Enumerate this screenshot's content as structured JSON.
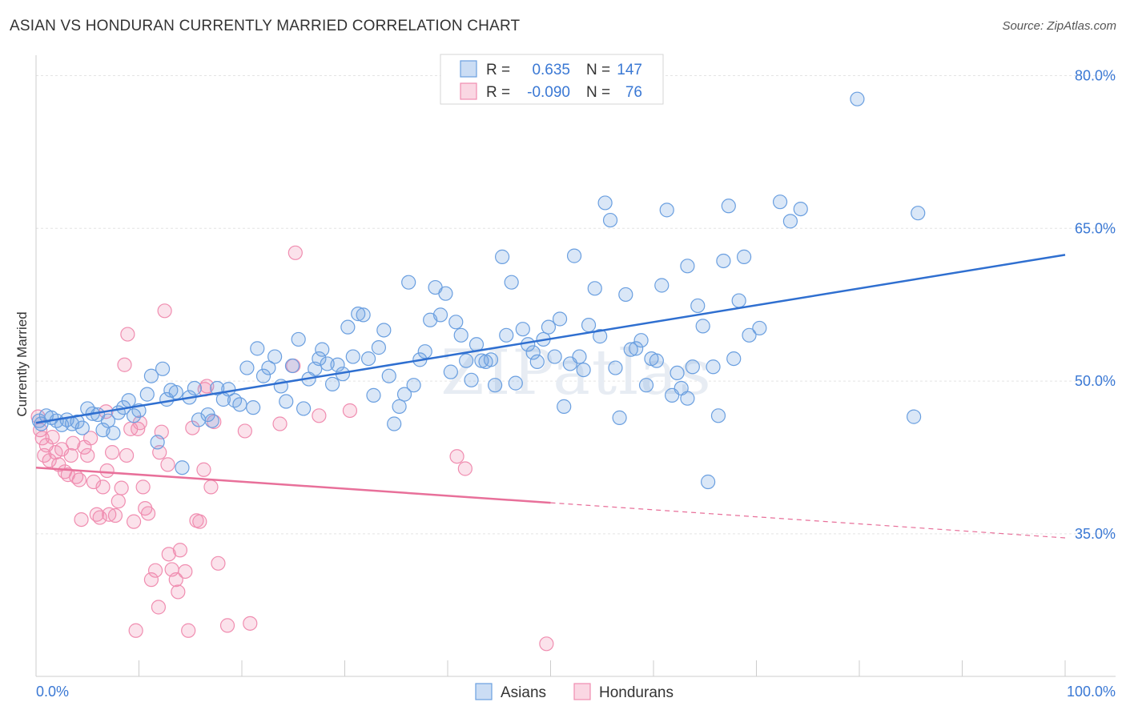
{
  "title": "ASIAN VS HONDURAN CURRENTLY MARRIED CORRELATION CHART",
  "source": "Source: ZipAtlas.com",
  "watermark": "ZIPatlas",
  "legend": {
    "rows": [
      {
        "r_label": "R =",
        "r_value": "0.635",
        "n_label": "N =",
        "n_value": "147",
        "color": "#6a9fe0"
      },
      {
        "r_label": "R =",
        "r_value": "-0.090",
        "n_label": "N =",
        "n_value": "76",
        "color": "#f08db0"
      }
    ]
  },
  "bottom_legend": [
    "Asians",
    "Hondurans"
  ],
  "chart_data": {
    "type": "scatter",
    "title": "ASIAN VS HONDURAN CURRENTLY MARRIED CORRELATION CHART",
    "xlabel": "",
    "ylabel": "Currently Married",
    "xlim": [
      0,
      100
    ],
    "ylim": [
      21,
      82
    ],
    "x_tick_labels": [
      "0.0%",
      "100.0%"
    ],
    "y_ticks": [
      35,
      50,
      65,
      80
    ],
    "y_tick_labels": [
      "35.0%",
      "50.0%",
      "65.0%",
      "80.0%"
    ],
    "grid": true,
    "legend_position": "top-center",
    "series": [
      {
        "name": "Asians",
        "color": "#6a9fe0",
        "fill": "rgba(106,159,224,0.25)",
        "r": 0.635,
        "n": 147,
        "trend": {
          "x0": 0,
          "y0": 45.9,
          "x1": 100,
          "y1": 62.4
        },
        "points": [
          [
            0.3,
            46.1
          ],
          [
            0.5,
            45.8
          ],
          [
            1.0,
            46.6
          ],
          [
            1.5,
            46.4
          ],
          [
            2.0,
            46.1
          ],
          [
            2.5,
            45.7
          ],
          [
            3.0,
            46.2
          ],
          [
            3.5,
            45.8
          ],
          [
            4.0,
            46.0
          ],
          [
            4.5,
            45.4
          ],
          [
            5.0,
            47.3
          ],
          [
            5.5,
            46.8
          ],
          [
            6.0,
            46.7
          ],
          [
            6.5,
            45.2
          ],
          [
            7.0,
            46.1
          ],
          [
            7.5,
            44.9
          ],
          [
            8.0,
            46.9
          ],
          [
            8.5,
            47.4
          ],
          [
            9.0,
            48.1
          ],
          [
            9.5,
            46.6
          ],
          [
            10.0,
            47.1
          ],
          [
            10.8,
            48.7
          ],
          [
            11.2,
            50.5
          ],
          [
            11.8,
            44.0
          ],
          [
            12.3,
            51.2
          ],
          [
            12.7,
            48.2
          ],
          [
            13.1,
            49.1
          ],
          [
            13.6,
            48.9
          ],
          [
            14.2,
            41.5
          ],
          [
            14.9,
            48.4
          ],
          [
            15.4,
            49.3
          ],
          [
            15.8,
            46.2
          ],
          [
            16.7,
            46.7
          ],
          [
            17.1,
            46.1
          ],
          [
            17.6,
            49.3
          ],
          [
            18.2,
            48.2
          ],
          [
            18.7,
            49.2
          ],
          [
            19.3,
            48.1
          ],
          [
            19.8,
            47.7
          ],
          [
            20.5,
            51.3
          ],
          [
            21.1,
            47.4
          ],
          [
            21.5,
            53.2
          ],
          [
            22.1,
            50.5
          ],
          [
            22.6,
            51.3
          ],
          [
            23.2,
            52.4
          ],
          [
            23.8,
            49.5
          ],
          [
            24.3,
            48.0
          ],
          [
            24.9,
            51.5
          ],
          [
            25.5,
            54.1
          ],
          [
            26.0,
            47.3
          ],
          [
            26.5,
            50.2
          ],
          [
            27.1,
            51.2
          ],
          [
            27.5,
            52.2
          ],
          [
            27.8,
            53.1
          ],
          [
            28.3,
            51.7
          ],
          [
            28.8,
            49.7
          ],
          [
            29.3,
            51.6
          ],
          [
            29.8,
            50.7
          ],
          [
            30.3,
            55.3
          ],
          [
            30.8,
            52.4
          ],
          [
            31.3,
            56.6
          ],
          [
            31.8,
            56.5
          ],
          [
            32.3,
            52.2
          ],
          [
            32.8,
            48.6
          ],
          [
            33.3,
            53.3
          ],
          [
            33.8,
            55.0
          ],
          [
            34.3,
            50.5
          ],
          [
            34.8,
            45.8
          ],
          [
            35.3,
            47.5
          ],
          [
            35.8,
            48.7
          ],
          [
            36.2,
            59.7
          ],
          [
            36.7,
            49.6
          ],
          [
            37.3,
            52.1
          ],
          [
            37.8,
            52.9
          ],
          [
            38.3,
            56.0
          ],
          [
            38.8,
            59.2
          ],
          [
            39.3,
            56.5
          ],
          [
            39.8,
            58.6
          ],
          [
            40.3,
            50.9
          ],
          [
            40.8,
            55.8
          ],
          [
            41.3,
            54.5
          ],
          [
            41.8,
            52.0
          ],
          [
            42.3,
            50.1
          ],
          [
            42.8,
            53.6
          ],
          [
            43.3,
            52.0
          ],
          [
            43.7,
            51.9
          ],
          [
            44.2,
            52.1
          ],
          [
            44.6,
            49.6
          ],
          [
            45.3,
            62.2
          ],
          [
            45.7,
            54.5
          ],
          [
            46.2,
            59.7
          ],
          [
            46.6,
            49.8
          ],
          [
            47.3,
            55.1
          ],
          [
            47.8,
            53.6
          ],
          [
            48.3,
            52.8
          ],
          [
            48.7,
            51.9
          ],
          [
            49.3,
            54.1
          ],
          [
            49.8,
            55.3
          ],
          [
            50.4,
            52.4
          ],
          [
            50.9,
            56.1
          ],
          [
            51.3,
            47.5
          ],
          [
            51.9,
            51.7
          ],
          [
            52.3,
            62.3
          ],
          [
            52.8,
            52.4
          ],
          [
            53.2,
            51.1
          ],
          [
            53.7,
            55.5
          ],
          [
            54.3,
            59.1
          ],
          [
            54.8,
            54.4
          ],
          [
            55.3,
            67.5
          ],
          [
            55.8,
            65.8
          ],
          [
            56.3,
            51.3
          ],
          [
            56.7,
            46.4
          ],
          [
            57.3,
            58.5
          ],
          [
            57.8,
            53.1
          ],
          [
            58.3,
            53.2
          ],
          [
            58.8,
            54.0
          ],
          [
            59.3,
            49.6
          ],
          [
            59.8,
            52.2
          ],
          [
            60.3,
            52.0
          ],
          [
            60.8,
            59.4
          ],
          [
            61.3,
            66.8
          ],
          [
            61.8,
            48.6
          ],
          [
            62.3,
            50.8
          ],
          [
            62.7,
            49.3
          ],
          [
            63.3,
            48.3
          ],
          [
            63.8,
            51.4
          ],
          [
            64.3,
            57.4
          ],
          [
            64.8,
            55.4
          ],
          [
            65.3,
            40.1
          ],
          [
            65.8,
            51.4
          ],
          [
            66.3,
            46.6
          ],
          [
            66.8,
            61.8
          ],
          [
            67.3,
            67.2
          ],
          [
            67.8,
            52.2
          ],
          [
            68.3,
            57.9
          ],
          [
            68.8,
            62.2
          ],
          [
            69.3,
            54.5
          ],
          [
            70.3,
            55.2
          ],
          [
            72.3,
            67.6
          ],
          [
            73.3,
            65.7
          ],
          [
            74.3,
            66.9
          ],
          [
            79.8,
            77.7
          ],
          [
            85.7,
            66.5
          ],
          [
            85.3,
            46.5
          ],
          [
            63.3,
            61.3
          ]
        ]
      },
      {
        "name": "Hondurans",
        "color": "#f08db0",
        "fill": "rgba(240,141,176,0.25)",
        "r": -0.09,
        "n": 76,
        "trend": {
          "x0": 0,
          "y0": 41.5,
          "x1": 100,
          "y1": 34.6,
          "solid_until": 50
        },
        "points": [
          [
            0.2,
            46.5
          ],
          [
            0.4,
            45.2
          ],
          [
            0.6,
            44.4
          ],
          [
            0.8,
            42.7
          ],
          [
            1.0,
            43.7
          ],
          [
            1.3,
            42.2
          ],
          [
            1.6,
            44.5
          ],
          [
            1.9,
            43.0
          ],
          [
            2.2,
            41.8
          ],
          [
            2.5,
            43.3
          ],
          [
            2.8,
            41.1
          ],
          [
            3.1,
            40.8
          ],
          [
            3.4,
            42.7
          ],
          [
            3.6,
            43.9
          ],
          [
            3.9,
            40.6
          ],
          [
            4.2,
            40.3
          ],
          [
            4.4,
            36.4
          ],
          [
            4.7,
            43.5
          ],
          [
            5.0,
            42.7
          ],
          [
            5.3,
            44.4
          ],
          [
            5.6,
            40.1
          ],
          [
            5.9,
            36.9
          ],
          [
            6.2,
            36.6
          ],
          [
            6.5,
            39.6
          ],
          [
            6.8,
            47.0
          ],
          [
            6.9,
            41.2
          ],
          [
            7.1,
            36.9
          ],
          [
            7.4,
            43.0
          ],
          [
            7.7,
            36.8
          ],
          [
            8.0,
            38.2
          ],
          [
            8.3,
            39.5
          ],
          [
            8.6,
            51.6
          ],
          [
            8.8,
            42.7
          ],
          [
            8.9,
            54.6
          ],
          [
            9.2,
            45.3
          ],
          [
            9.5,
            36.2
          ],
          [
            9.7,
            25.5
          ],
          [
            9.9,
            45.3
          ],
          [
            10.1,
            45.9
          ],
          [
            10.4,
            39.6
          ],
          [
            10.6,
            37.5
          ],
          [
            10.9,
            37.0
          ],
          [
            11.2,
            30.5
          ],
          [
            11.6,
            31.4
          ],
          [
            11.9,
            27.8
          ],
          [
            12.2,
            45.0
          ],
          [
            12.5,
            56.9
          ],
          [
            12.8,
            41.8
          ],
          [
            12.9,
            33.0
          ],
          [
            13.2,
            31.5
          ],
          [
            13.6,
            30.5
          ],
          [
            13.8,
            29.3
          ],
          [
            14.0,
            33.4
          ],
          [
            14.5,
            31.3
          ],
          [
            14.8,
            25.5
          ],
          [
            15.2,
            45.4
          ],
          [
            15.6,
            36.3
          ],
          [
            15.9,
            36.2
          ],
          [
            16.3,
            41.3
          ],
          [
            16.6,
            49.5
          ],
          [
            17.0,
            39.6
          ],
          [
            17.3,
            46.0
          ],
          [
            17.7,
            32.1
          ],
          [
            18.6,
            26.0
          ],
          [
            20.3,
            45.1
          ],
          [
            20.8,
            26.2
          ],
          [
            23.7,
            45.8
          ],
          [
            25.0,
            51.5
          ],
          [
            25.2,
            62.6
          ],
          [
            27.5,
            46.6
          ],
          [
            30.5,
            47.1
          ],
          [
            40.9,
            42.6
          ],
          [
            41.7,
            41.4
          ],
          [
            49.6,
            24.2
          ],
          [
            16.4,
            49.2
          ],
          [
            12.0,
            43.0
          ]
        ]
      }
    ]
  }
}
